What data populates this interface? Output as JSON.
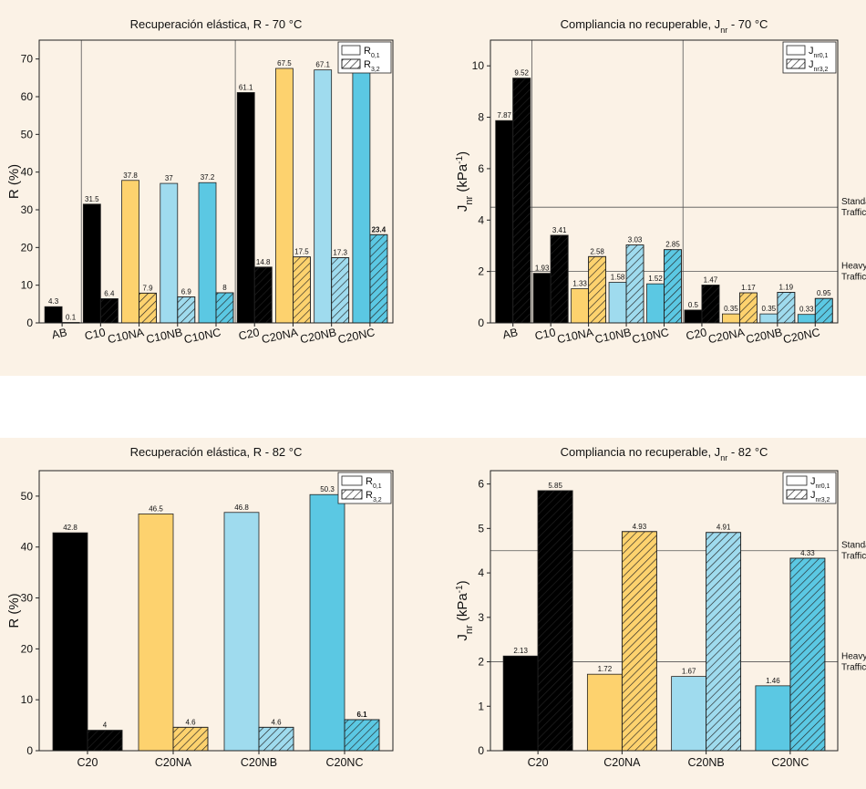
{
  "colors": {
    "AB": "#000000",
    "C10": "#000000",
    "C10NA": "#fdd26e",
    "C10NB": "#9fdbee",
    "C10NC": "#5bc8e3",
    "C20": "#000000",
    "C20NA": "#fdd26e",
    "C20NB": "#9fdbee",
    "C20NC": "#5bc8e3",
    "background": "#fbf2e6"
  },
  "chart_data": [
    {
      "id": "r70",
      "type": "bar",
      "title": "Recuperación elástica, R - 70 °C",
      "ylabel": "R (%)",
      "ylim": [
        0,
        75
      ],
      "yticks": [
        0,
        10,
        20,
        30,
        40,
        50,
        60,
        70
      ],
      "categories": [
        "AB",
        "C10",
        "C10NA",
        "C10NB",
        "C10NC",
        "C20",
        "C20NA",
        "C20NB",
        "C20NC"
      ],
      "series": [
        {
          "name": "R0,1",
          "legend_main": "R",
          "legend_sub": "0,1",
          "hatched": false,
          "values": [
            4.3,
            31.5,
            37.8,
            37,
            37.2,
            61.1,
            67.5,
            67.1,
            67.2
          ],
          "labels": [
            "4.3",
            "31.5",
            "37.8",
            "37",
            "37.2",
            "61.1",
            "67.5",
            "67.1",
            "67.2"
          ]
        },
        {
          "name": "R3,2",
          "legend_main": "R",
          "legend_sub": "3,2",
          "hatched": true,
          "values": [
            0.1,
            6.4,
            7.9,
            6.9,
            8,
            14.8,
            17.5,
            17.3,
            23.4
          ],
          "labels": [
            "0.1",
            "6.4",
            "7.9",
            "6.9",
            "8",
            "14.8",
            "17.5",
            "17.3",
            "23.4"
          ]
        }
      ],
      "separators_after": [
        0,
        4
      ],
      "reference_lines": []
    },
    {
      "id": "j70",
      "type": "bar",
      "title_main": "Compliancia no recuperable, J",
      "title_sub": "nr",
      "title_end": " - 70 °C",
      "ylabel_main": "J",
      "ylabel_sub": "nr",
      "ylabel_rest": " (kPa",
      "ylabel_sup": "-1",
      "ylabel_end": ")",
      "ylim": [
        0,
        11
      ],
      "yticks": [
        0,
        2,
        4,
        6,
        8,
        10
      ],
      "categories": [
        "AB",
        "C10",
        "C10NA",
        "C10NB",
        "C10NC",
        "C20",
        "C20NA",
        "C20NB",
        "C20NC"
      ],
      "series": [
        {
          "name": "Jnr0,1",
          "legend_main": "J",
          "legend_sub": "nr0,1",
          "hatched": false,
          "values": [
            7.87,
            1.93,
            1.33,
            1.58,
            1.52,
            0.5,
            0.35,
            0.35,
            0.33
          ],
          "labels": [
            "7.87",
            "1.93",
            "1.33",
            "1.58",
            "1.52",
            "0.5",
            "0.35",
            "0.35",
            "0.33"
          ]
        },
        {
          "name": "Jnr3,2",
          "legend_main": "J",
          "legend_sub": "nr3,2",
          "hatched": true,
          "values": [
            9.52,
            3.41,
            2.58,
            3.03,
            2.85,
            1.47,
            1.17,
            1.19,
            0.95
          ],
          "labels": [
            "9.52",
            "3.41",
            "2.58",
            "3.03",
            "2.85",
            "1.47",
            "1.17",
            "1.19",
            "0.95"
          ]
        }
      ],
      "separators_after": [
        0,
        4
      ],
      "reference_lines": [
        {
          "value": 4.5,
          "line1": "Standa",
          "line2": "Traffic"
        },
        {
          "value": 2,
          "line1": "Heavy",
          "line2": "Traffic"
        }
      ]
    },
    {
      "id": "r82",
      "type": "bar",
      "title": "Recuperación elástica, R - 82 °C",
      "ylabel": "R (%)",
      "ylim": [
        0,
        55
      ],
      "yticks": [
        0,
        10,
        20,
        30,
        40,
        50
      ],
      "categories": [
        "C20",
        "C20NA",
        "C20NB",
        "C20NC"
      ],
      "series": [
        {
          "name": "R0,1",
          "legend_main": "R",
          "legend_sub": "0,1",
          "hatched": false,
          "values": [
            42.8,
            46.5,
            46.8,
            50.3
          ],
          "labels": [
            "42.8",
            "46.5",
            "46.8",
            "50.3"
          ]
        },
        {
          "name": "R3,2",
          "legend_main": "R",
          "legend_sub": "3,2",
          "hatched": true,
          "values": [
            4,
            4.6,
            4.6,
            6.1
          ],
          "labels": [
            "4",
            "4.6",
            "4.6",
            "6.1"
          ]
        }
      ],
      "separators_after": [],
      "reference_lines": []
    },
    {
      "id": "j82",
      "type": "bar",
      "title_main": "Compliancia no recuperable, J",
      "title_sub": "nr",
      "title_end": " - 82 °C",
      "ylabel_main": "J",
      "ylabel_sub": "nr",
      "ylabel_rest": " (kPa",
      "ylabel_sup": "-1",
      "ylabel_end": ")",
      "ylim": [
        0,
        6.3
      ],
      "yticks": [
        0,
        1,
        2,
        3,
        4,
        5,
        6
      ],
      "categories": [
        "C20",
        "C20NA",
        "C20NB",
        "C20NC"
      ],
      "series": [
        {
          "name": "Jnr0,1",
          "legend_main": "J",
          "legend_sub": "nr0,1",
          "hatched": false,
          "values": [
            2.13,
            1.72,
            1.67,
            1.46
          ],
          "labels": [
            "2.13",
            "1.72",
            "1.67",
            "1.46"
          ]
        },
        {
          "name": "Jnr3,2",
          "legend_main": "J",
          "legend_sub": "nr3,2",
          "hatched": true,
          "values": [
            5.85,
            4.93,
            4.91,
            4.33
          ],
          "labels": [
            "5.85",
            "4.93",
            "4.91",
            "4.33"
          ]
        }
      ],
      "separators_after": [],
      "reference_lines": [
        {
          "value": 4.5,
          "line1": "Standa",
          "line2": "Traffic"
        },
        {
          "value": 2,
          "line1": "Heavy",
          "line2": "Traffic"
        }
      ]
    }
  ]
}
